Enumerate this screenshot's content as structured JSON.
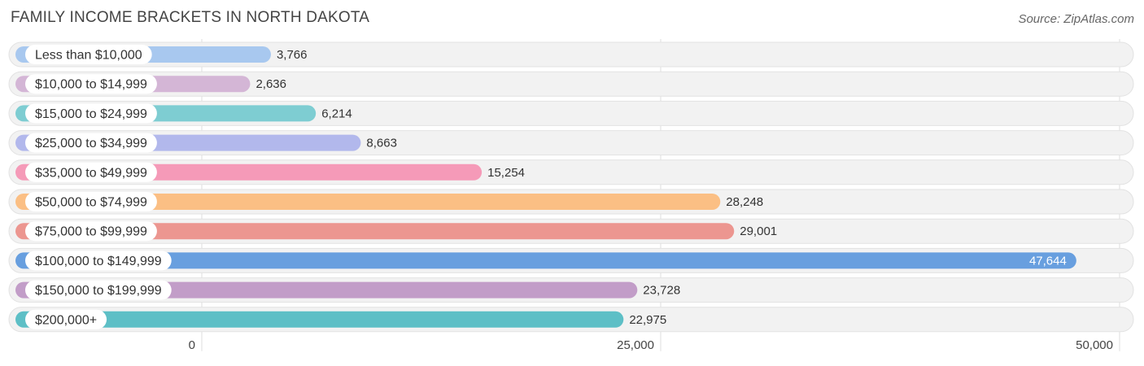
{
  "header": {
    "title": "FAMILY INCOME BRACKETS IN NORTH DAKOTA",
    "source": "Source: ZipAtlas.com"
  },
  "chart_data": {
    "type": "bar",
    "orientation": "horizontal",
    "title": "FAMILY INCOME BRACKETS IN NORTH DAKOTA",
    "xlabel": "",
    "ylabel": "",
    "xlim": [
      0,
      50000
    ],
    "ticks": [
      {
        "value": 0,
        "label": "0"
      },
      {
        "value": 25000,
        "label": "25,000"
      },
      {
        "value": 50000,
        "label": "50,000"
      }
    ],
    "grid": true,
    "categories": [
      "Less than $10,000",
      "$10,000 to $14,999",
      "$15,000 to $24,999",
      "$25,000 to $34,999",
      "$35,000 to $49,999",
      "$50,000 to $74,999",
      "$75,000 to $99,999",
      "$100,000 to $149,999",
      "$150,000 to $199,999",
      "$200,000+"
    ],
    "values": [
      3766,
      2636,
      6214,
      8663,
      15254,
      28248,
      29001,
      47644,
      23728,
      22975
    ],
    "value_labels": [
      "3,766",
      "2,636",
      "6,214",
      "8,663",
      "15,254",
      "28,248",
      "29,001",
      "47,644",
      "23,728",
      "22,975"
    ],
    "colors": [
      "#a8c8ef",
      "#d4b6d6",
      "#7ecdd2",
      "#b2b8ec",
      "#f59ab8",
      "#fbbf84",
      "#ec9690",
      "#689fdf",
      "#c29dc8",
      "#5dbfc6"
    ]
  }
}
